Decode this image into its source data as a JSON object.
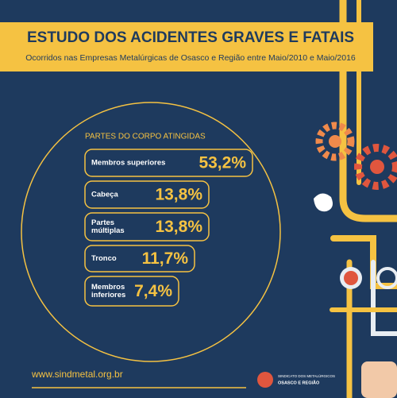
{
  "header": {
    "title": "ESTUDO DOS ACIDENTES GRAVES E FATAIS",
    "subtitle": "Ocorridos nas Empresas Metalúrgicas de Osasco e Região entre Maio/2010 e Maio/2016"
  },
  "section": {
    "heading": "PARTES DO CORPO ATINGIDAS",
    "items": [
      {
        "label": [
          "Membros superiores"
        ],
        "value": "53,2%"
      },
      {
        "label": [
          "Cabeça"
        ],
        "value": "13,8%"
      },
      {
        "label": [
          "Partes",
          "múltiplas"
        ],
        "value": "13,8%"
      },
      {
        "label": [
          "Tronco"
        ],
        "value": "11,7%"
      },
      {
        "label": [
          "Membros",
          "inferiores"
        ],
        "value": "7,4%"
      }
    ]
  },
  "footer": {
    "url": "www.sindmetal.org.br",
    "logo": [
      "SINDICATO DOS METALÚRGICOS",
      "OSASCO E REGIÃO"
    ]
  }
}
